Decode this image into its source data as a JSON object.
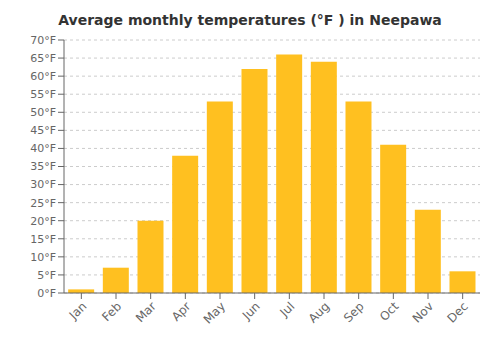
{
  "chart_data": {
    "type": "bar",
    "title": "Average monthly temperatures (°F ) in Neepawa",
    "categories": [
      "Jan",
      "Feb",
      "Mar",
      "Apr",
      "May",
      "Jun",
      "Jul",
      "Aug",
      "Sep",
      "Oct",
      "Nov",
      "Dec"
    ],
    "values": [
      1,
      7,
      20,
      38,
      53,
      62,
      66,
      64,
      53,
      41,
      23,
      6
    ],
    "color": "#FFC020",
    "ylim": [
      0,
      70
    ],
    "yticks": [
      {
        "value": 0,
        "label": "0°F"
      },
      {
        "value": 5,
        "label": "5°F"
      },
      {
        "value": 10,
        "label": "10°F"
      },
      {
        "value": 15,
        "label": "15°F"
      },
      {
        "value": 20,
        "label": "20°F"
      },
      {
        "value": 25,
        "label": "25°F"
      },
      {
        "value": 30,
        "label": "30°F"
      },
      {
        "value": 35,
        "label": "35°F"
      },
      {
        "value": 40,
        "label": "40°F"
      },
      {
        "value": 45,
        "label": "45°F"
      },
      {
        "value": 50,
        "label": "50°F"
      },
      {
        "value": 55,
        "label": "55°F"
      },
      {
        "value": 60,
        "label": "60°F"
      },
      {
        "value": 65,
        "label": "65°F"
      },
      {
        "value": 70,
        "label": "70°F"
      }
    ],
    "grid": true
  }
}
